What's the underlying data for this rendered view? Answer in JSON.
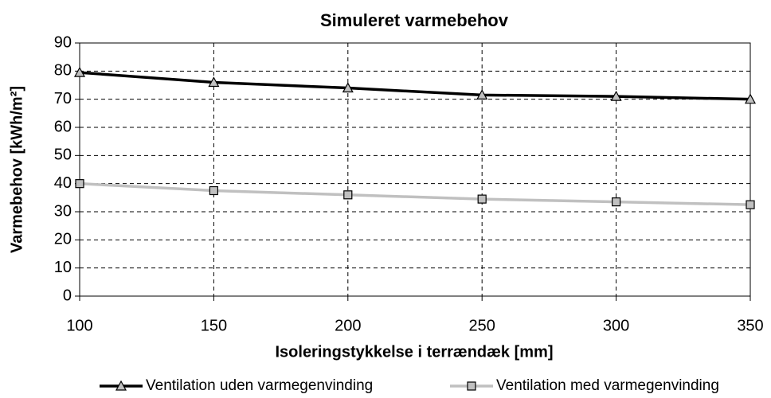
{
  "chart_data": {
    "type": "line",
    "title": "Simuleret varmebehov",
    "xlabel": "Isoleringstykkelse i terrændæk [mm]",
    "ylabel": "Varmebehov [kWh/m²]",
    "x": [
      100,
      150,
      200,
      250,
      300,
      350
    ],
    "series": [
      {
        "name": "Ventilation uden varmegenvinding",
        "color": "#000000",
        "marker": "triangle",
        "values": [
          79.5,
          76,
          74,
          71.5,
          71,
          70
        ]
      },
      {
        "name": "Ventilation med varmegenvinding",
        "color": "#c0c0c0",
        "marker": "square",
        "values": [
          40,
          37.5,
          36,
          34.5,
          33.5,
          32.5
        ]
      }
    ],
    "xlim": [
      100,
      350
    ],
    "xticks": [
      100,
      150,
      200,
      250,
      300,
      350
    ],
    "ylim": [
      0,
      90
    ],
    "yticks": [
      0,
      10,
      20,
      30,
      40,
      50,
      60,
      70,
      80,
      90
    ],
    "grid": true,
    "legend": "bottom"
  }
}
